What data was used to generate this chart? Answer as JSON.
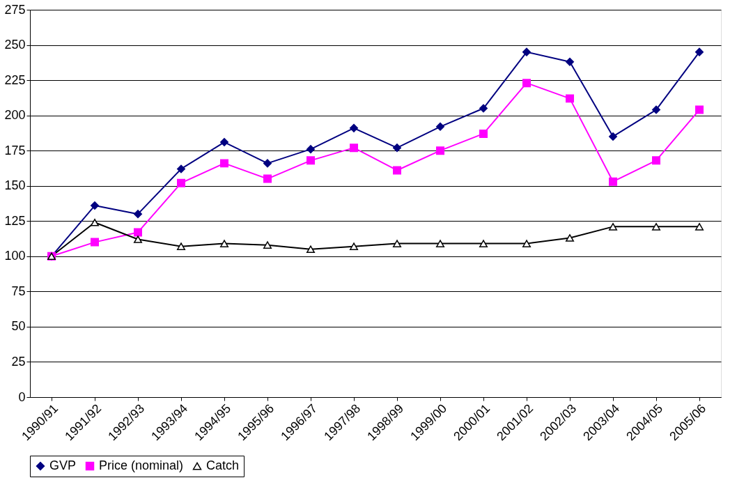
{
  "chart_data": {
    "type": "line",
    "categories": [
      "1990/91",
      "1991/92",
      "1992/93",
      "1993/94",
      "1994/95",
      "1995/96",
      "1996/97",
      "1997/98",
      "1998/99",
      "1999/00",
      "2000/01",
      "2001/02",
      "2002/03",
      "2003/04",
      "2004/05",
      "2005/06"
    ],
    "series": [
      {
        "name": "GVP",
        "color": "#000080",
        "marker": "diamond",
        "values": [
          100,
          136,
          130,
          162,
          181,
          166,
          176,
          191,
          177,
          192,
          205,
          245,
          238,
          185,
          204,
          245
        ]
      },
      {
        "name": "Price (nominal)",
        "color": "#ff00ff",
        "marker": "square",
        "values": [
          100,
          110,
          117,
          152,
          166,
          155,
          168,
          177,
          161,
          175,
          187,
          223,
          212,
          153,
          168,
          204
        ]
      },
      {
        "name": "Catch",
        "color": "#000000",
        "marker": "triangle",
        "values": [
          100,
          124,
          112,
          107,
          109,
          108,
          105,
          107,
          109,
          109,
          109,
          109,
          113,
          121,
          121,
          121
        ]
      }
    ],
    "ylim": [
      0,
      275
    ],
    "yticks": [
      0,
      25,
      50,
      75,
      100,
      125,
      150,
      175,
      200,
      225,
      250,
      275
    ],
    "grid": "y",
    "legend": "bottom"
  }
}
